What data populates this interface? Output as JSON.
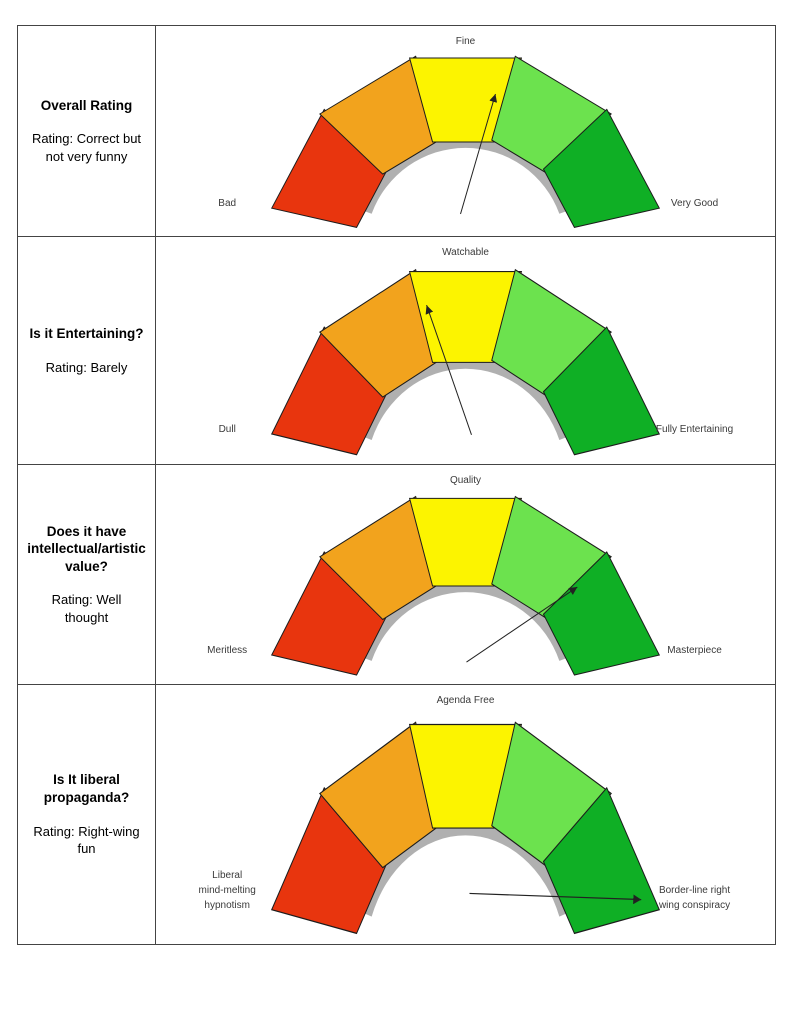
{
  "gauge_style": {
    "segment_colors": [
      "#e8350e",
      "#f2a31d",
      "#fcf400",
      "#6ce24e",
      "#0faf25"
    ],
    "arc_color": "#b0b0b0",
    "outline_color": "#1c1c1c",
    "needle_color": "#222222"
  },
  "chart_data": [
    {
      "type": "gauge",
      "title": "Overall Rating",
      "rating": "Rating: Correct but\nnot very funny",
      "top_label": "Fine",
      "left_label": "Bad",
      "right_label": "Very Good",
      "segments": [
        "red",
        "orange",
        "yellow",
        "light-green",
        "green"
      ],
      "needle_fraction": 0.55,
      "needle": {
        "from": [
          305,
          188
        ],
        "to": [
          340,
          68
        ]
      }
    },
    {
      "type": "gauge",
      "title": "Is it Entertaining?",
      "rating": "Rating: Barely",
      "top_label": "Watchable",
      "left_label": "Dull",
      "right_label": "Fully Entertaining",
      "segments": [
        "red",
        "orange",
        "yellow",
        "light-green",
        "green"
      ],
      "needle_fraction": 0.42,
      "needle": {
        "from": [
          316,
          183
        ],
        "to": [
          271,
          63
        ]
      }
    },
    {
      "type": "gauge",
      "title": "Does it have\nintellectual/artistic\nvalue?",
      "rating": "Rating: Well\nthought",
      "top_label": "Quality",
      "left_label": "Meritless",
      "right_label": "Masterpiece",
      "segments": [
        "red",
        "orange",
        "yellow",
        "light-green",
        "green"
      ],
      "needle_fraction": 0.76,
      "needle": {
        "from": [
          311,
          189
        ],
        "to": [
          422,
          117
        ]
      }
    },
    {
      "type": "gauge",
      "title": "Is It liberal\npropaganda?",
      "rating": "Rating: Right-wing\nfun",
      "top_label": "Agenda Free",
      "left_label": "Liberal\nmind-melting\nhypnotism",
      "right_label": "Border-line right\nwing conspiracy",
      "segments": [
        "red",
        "orange",
        "yellow",
        "light-green",
        "green"
      ],
      "needle_fraction": 0.97,
      "needle": {
        "from": [
          314,
          169
        ],
        "to": [
          486,
          174
        ]
      }
    }
  ]
}
